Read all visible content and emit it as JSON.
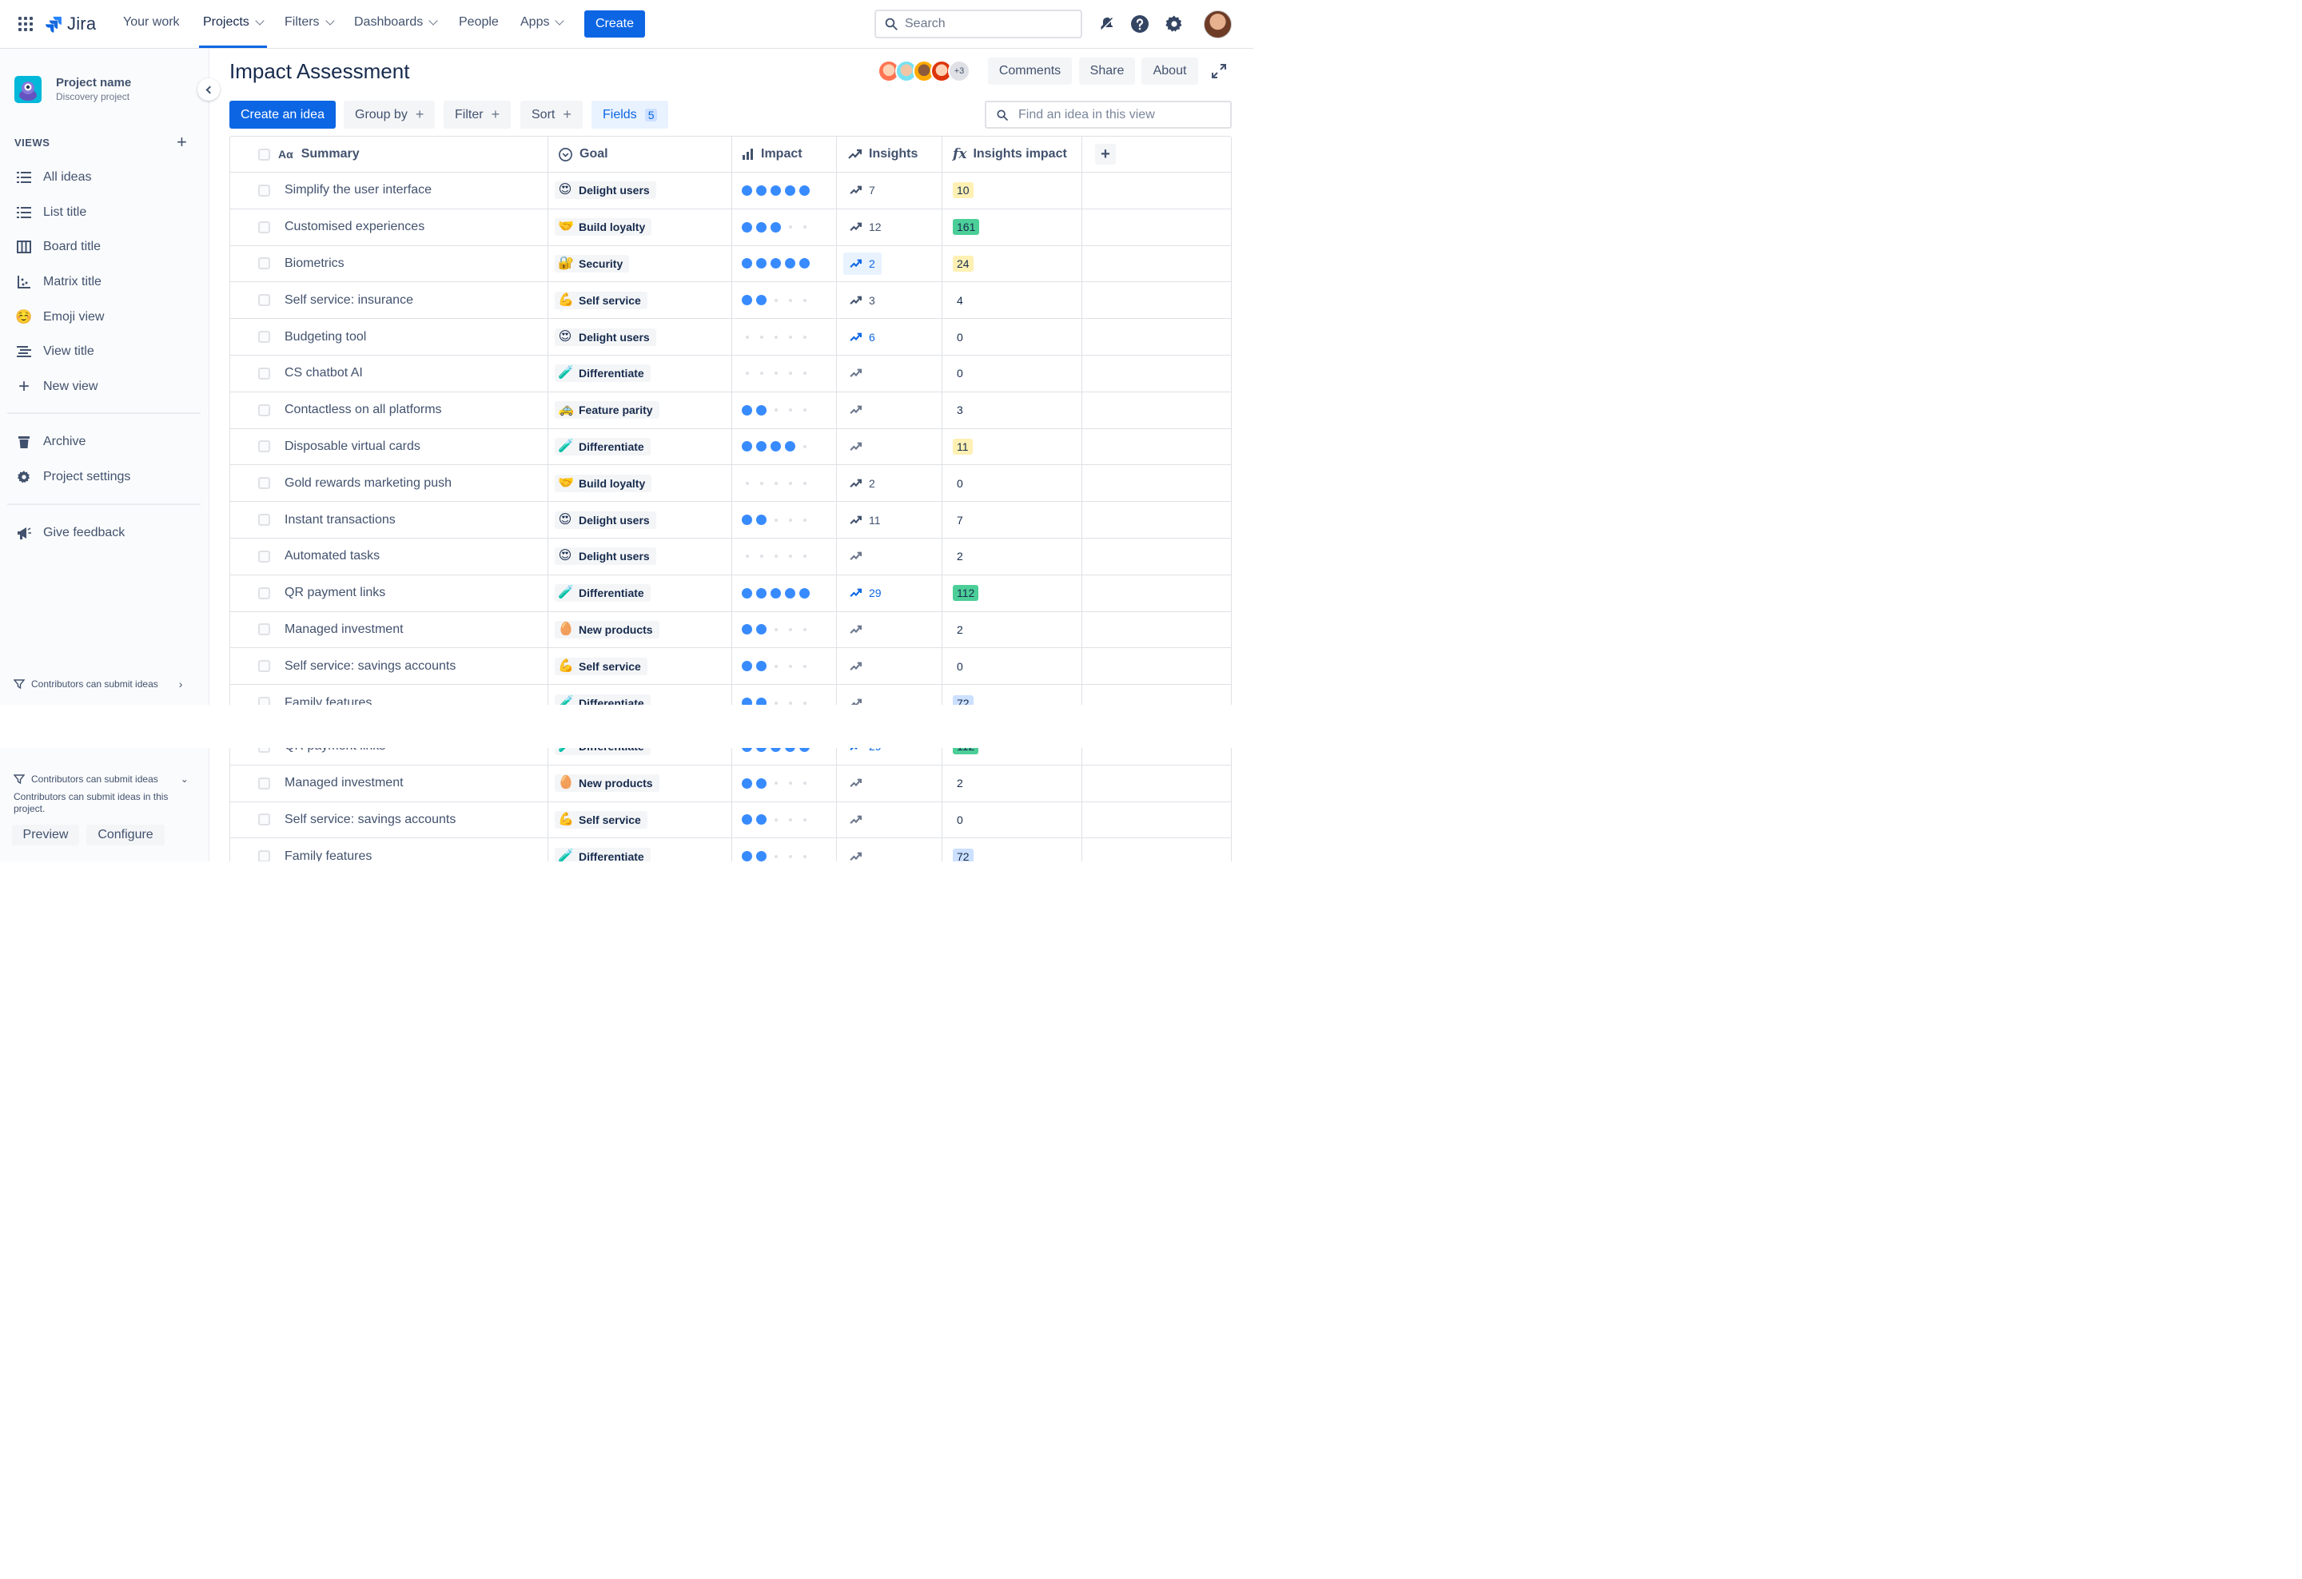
{
  "nav": {
    "logo": "Jira",
    "items": [
      "Your work",
      "Projects",
      "Filters",
      "Dashboards",
      "People",
      "Apps"
    ],
    "create": "Create",
    "search_placeholder": "Search"
  },
  "sidebar": {
    "project_name": "Project name",
    "project_sub": "Discovery project",
    "views_heading": "VIEWS",
    "views": [
      {
        "label": "All ideas",
        "icon": "list-icon"
      },
      {
        "label": "List title",
        "icon": "list-icon"
      },
      {
        "label": "Board title",
        "icon": "board-icon"
      },
      {
        "label": "Matrix title",
        "icon": "matrix-icon"
      },
      {
        "label": "Emoji view",
        "icon": "emoji-icon"
      },
      {
        "label": "View title",
        "icon": "timeline-icon"
      },
      {
        "label": "New view",
        "icon": "plus-icon"
      }
    ],
    "archive": "Archive",
    "settings": "Project settings",
    "feedback": "Give feedback",
    "contrib": "Contributors can submit ideas",
    "contrib_desc": "Contributors can submit ideas in this project.",
    "preview": "Preview",
    "configure": "Configure"
  },
  "header": {
    "title": "Impact Assessment",
    "more_avatars": "+3",
    "comments": "Comments",
    "share": "Share",
    "about": "About"
  },
  "toolbar": {
    "create_idea": "Create an idea",
    "group_by": "Group by",
    "filter": "Filter",
    "sort": "Sort",
    "fields": "Fields",
    "fields_count": "5",
    "find_placeholder": "Find an idea in this view"
  },
  "columns": {
    "summary": "Summary",
    "goal": "Goal",
    "impact": "Impact",
    "insights": "Insights",
    "insights_impact": "Insights impact"
  },
  "rows": [
    {
      "summary": "Simplify the user interface",
      "goal": "Delight users",
      "goal_icon": "😍",
      "impact": 5,
      "insights": "7",
      "ii": "10",
      "ii_color": "yellow"
    },
    {
      "summary": "Customised experiences",
      "goal": "Build loyalty",
      "goal_icon": "🤝",
      "impact": 3,
      "insights": "12",
      "ii": "161",
      "ii_color": "green"
    },
    {
      "summary": "Biometrics",
      "goal": "Security",
      "goal_icon": "🔐",
      "impact": 5,
      "insights": "2",
      "insights_style": "bg",
      "ii": "24",
      "ii_color": "yellow"
    },
    {
      "summary": "Self service: insurance",
      "goal": "Self service",
      "goal_icon": "💪",
      "impact": 2,
      "insights": "3",
      "ii": "4",
      "ii_color": "none"
    },
    {
      "summary": "Budgeting tool",
      "goal": "Delight users",
      "goal_icon": "😍",
      "impact": 0,
      "insights": "6",
      "insights_style": "blue",
      "ii": "0",
      "ii_color": "none"
    },
    {
      "summary": "CS chatbot AI",
      "goal": "Differentiate",
      "goal_icon": "🧪",
      "impact": 0,
      "insights": "",
      "ii": "0",
      "ii_color": "none"
    },
    {
      "summary": "Contactless on all platforms",
      "goal": "Feature parity",
      "goal_icon": "🚕",
      "impact": 2,
      "insights": "",
      "ii": "3",
      "ii_color": "none"
    },
    {
      "summary": "Disposable virtual cards",
      "goal": "Differentiate",
      "goal_icon": "🧪",
      "impact": 4,
      "insights": "",
      "ii": "11",
      "ii_color": "yellow"
    },
    {
      "summary": "Gold rewards marketing push",
      "goal": "Build loyalty",
      "goal_icon": "🤝",
      "impact": 0,
      "insights": "2",
      "ii": "0",
      "ii_color": "none"
    },
    {
      "summary": "Instant transactions",
      "goal": "Delight users",
      "goal_icon": "😍",
      "impact": 2,
      "insights": "11",
      "ii": "7",
      "ii_color": "none"
    },
    {
      "summary": "Automated tasks",
      "goal": "Delight users",
      "goal_icon": "😍",
      "impact": 0,
      "insights": "",
      "ii": "2",
      "ii_color": "none"
    },
    {
      "summary": "QR payment links",
      "goal": "Differentiate",
      "goal_icon": "🧪",
      "impact": 5,
      "insights": "29",
      "insights_style": "blue",
      "ii": "112",
      "ii_color": "green"
    },
    {
      "summary": "Managed investment",
      "goal": "New products",
      "goal_icon": "🥚",
      "impact": 2,
      "insights": "",
      "ii": "2",
      "ii_color": "none"
    },
    {
      "summary": "Self service: savings accounts",
      "goal": "Self service",
      "goal_icon": "💪",
      "impact": 2,
      "insights": "",
      "ii": "0",
      "ii_color": "none"
    },
    {
      "summary": "Family features",
      "goal": "Differentiate",
      "goal_icon": "🧪",
      "impact": 2,
      "insights": "",
      "ii": "72",
      "ii_color": "blue"
    }
  ],
  "rows_lower": [
    {
      "summary": "QR payment links",
      "goal": "Differentiate",
      "goal_icon": "🧪",
      "impact": 5,
      "insights": "29",
      "insights_style": "blue",
      "ii": "112",
      "ii_color": "green"
    },
    {
      "summary": "Managed investment",
      "goal": "New products",
      "goal_icon": "🥚",
      "impact": 2,
      "insights": "",
      "ii": "2",
      "ii_color": "none"
    },
    {
      "summary": "Self service: savings accounts",
      "goal": "Self service",
      "goal_icon": "💪",
      "impact": 2,
      "insights": "",
      "ii": "0",
      "ii_color": "none"
    },
    {
      "summary": "Family features",
      "goal": "Differentiate",
      "goal_icon": "🧪",
      "impact": 2,
      "insights": "",
      "ii": "72",
      "ii_color": "blue"
    }
  ],
  "colors": {
    "primary": "#0c66e4",
    "impact_dot": "#388bff",
    "ii_yellow": "#fff0b3",
    "ii_green": "#4bce97",
    "ii_blue": "#cce0ff"
  }
}
